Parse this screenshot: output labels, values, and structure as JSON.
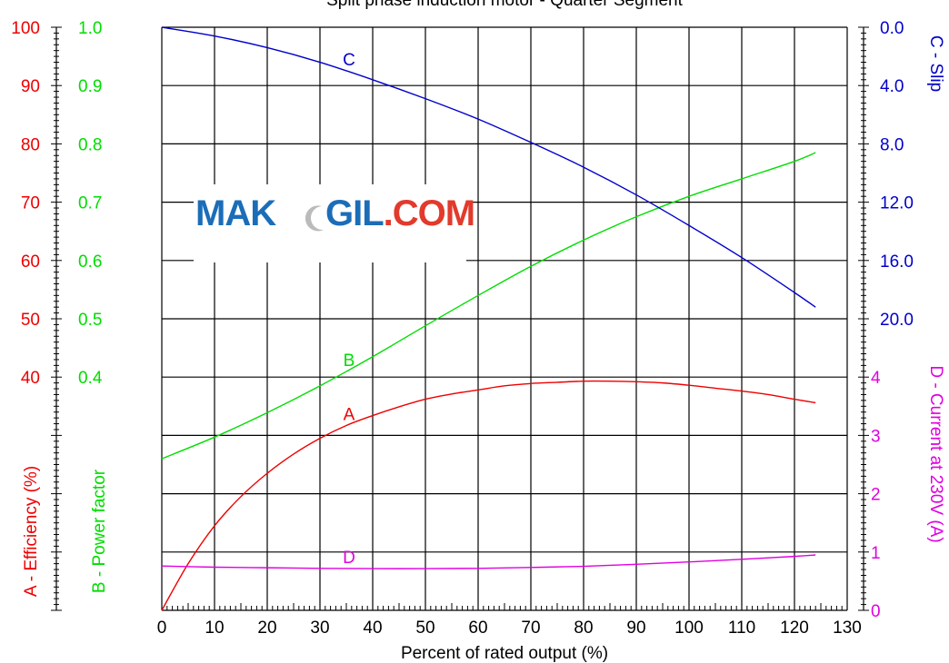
{
  "watermark": {
    "left": "MAK",
    "right_main": "GIL",
    "right_suffix": ".COM"
  },
  "colors": {
    "a": "#ee0000",
    "b": "#00dd00",
    "c": "#0000cc",
    "d": "#e000e0",
    "grid": "#000000"
  },
  "chart_data": {
    "type": "line",
    "title": "Split phase induction motor - Quarter Segment",
    "xlabel": "Percent of rated output (%)",
    "xlim": [
      0,
      130
    ],
    "x_ticks": [
      0,
      10,
      20,
      30,
      40,
      50,
      60,
      70,
      80,
      90,
      100,
      110,
      120,
      130
    ],
    "grid": true,
    "axes": {
      "efficiency": {
        "label": "A - Efficiency (%)",
        "ticks": [
          "100",
          "90",
          "80",
          "70",
          "60",
          "50",
          "40"
        ],
        "range": [
          0,
          100
        ]
      },
      "power_factor": {
        "label": "B - Power factor",
        "ticks": [
          "1.0",
          "0.9",
          "0.8",
          "0.7",
          "0.6",
          "0.5",
          "0.4"
        ],
        "range": [
          0,
          1.0
        ]
      },
      "slip": {
        "label": "C - Slip",
        "ticks": [
          "0.0",
          "4.0",
          "8.0",
          "12.0",
          "16.0",
          "20.0"
        ],
        "range": [
          0,
          20
        ],
        "inverted": true
      },
      "current": {
        "label": "D - Current at  230V (A)",
        "ticks": [
          "4",
          "3",
          "2",
          "1",
          "0"
        ],
        "range": [
          0,
          5
        ]
      }
    },
    "series": [
      {
        "name": "A",
        "axis": "efficiency",
        "x": [
          0,
          5,
          10,
          15,
          20,
          25,
          30,
          35,
          40,
          45,
          50,
          55,
          60,
          65,
          70,
          75,
          80,
          85,
          90,
          95,
          100,
          105,
          110,
          115,
          120,
          124
        ],
        "values": [
          0,
          8,
          14.5,
          19.5,
          23.5,
          26.8,
          29.5,
          31.7,
          33.4,
          34.9,
          36.2,
          37.1,
          37.8,
          38.5,
          38.9,
          39.1,
          39.3,
          39.3,
          39.2,
          39,
          38.6,
          38.1,
          37.6,
          37,
          36.2,
          35.6
        ]
      },
      {
        "name": "B",
        "axis": "power_factor",
        "x": [
          0,
          10,
          20,
          30,
          40,
          50,
          60,
          70,
          80,
          90,
          100,
          110,
          120,
          124
        ],
        "values": [
          0.26,
          0.297,
          0.339,
          0.385,
          0.435,
          0.488,
          0.54,
          0.59,
          0.635,
          0.675,
          0.71,
          0.74,
          0.77,
          0.785
        ]
      },
      {
        "name": "C",
        "axis": "slip",
        "x": [
          0,
          10,
          20,
          30,
          40,
          50,
          60,
          70,
          80,
          90,
          100,
          110,
          120,
          124
        ],
        "values": [
          0,
          0.6,
          1.4,
          2.4,
          3.6,
          4.9,
          6.3,
          7.9,
          9.6,
          11.5,
          13.6,
          15.8,
          18.2,
          19.2
        ]
      },
      {
        "name": "D",
        "axis": "current",
        "x": [
          0,
          10,
          20,
          30,
          40,
          50,
          60,
          70,
          80,
          90,
          100,
          110,
          120,
          124
        ],
        "values": [
          0.76,
          0.74,
          0.73,
          0.72,
          0.715,
          0.715,
          0.72,
          0.735,
          0.755,
          0.79,
          0.83,
          0.875,
          0.925,
          0.95
        ]
      }
    ],
    "annotations": [
      {
        "text": "A",
        "x": 35,
        "series": "A"
      },
      {
        "text": "B",
        "x": 35,
        "series": "B"
      },
      {
        "text": "C",
        "x": 35,
        "series": "C"
      },
      {
        "text": "D",
        "x": 35,
        "series": "D"
      }
    ]
  }
}
